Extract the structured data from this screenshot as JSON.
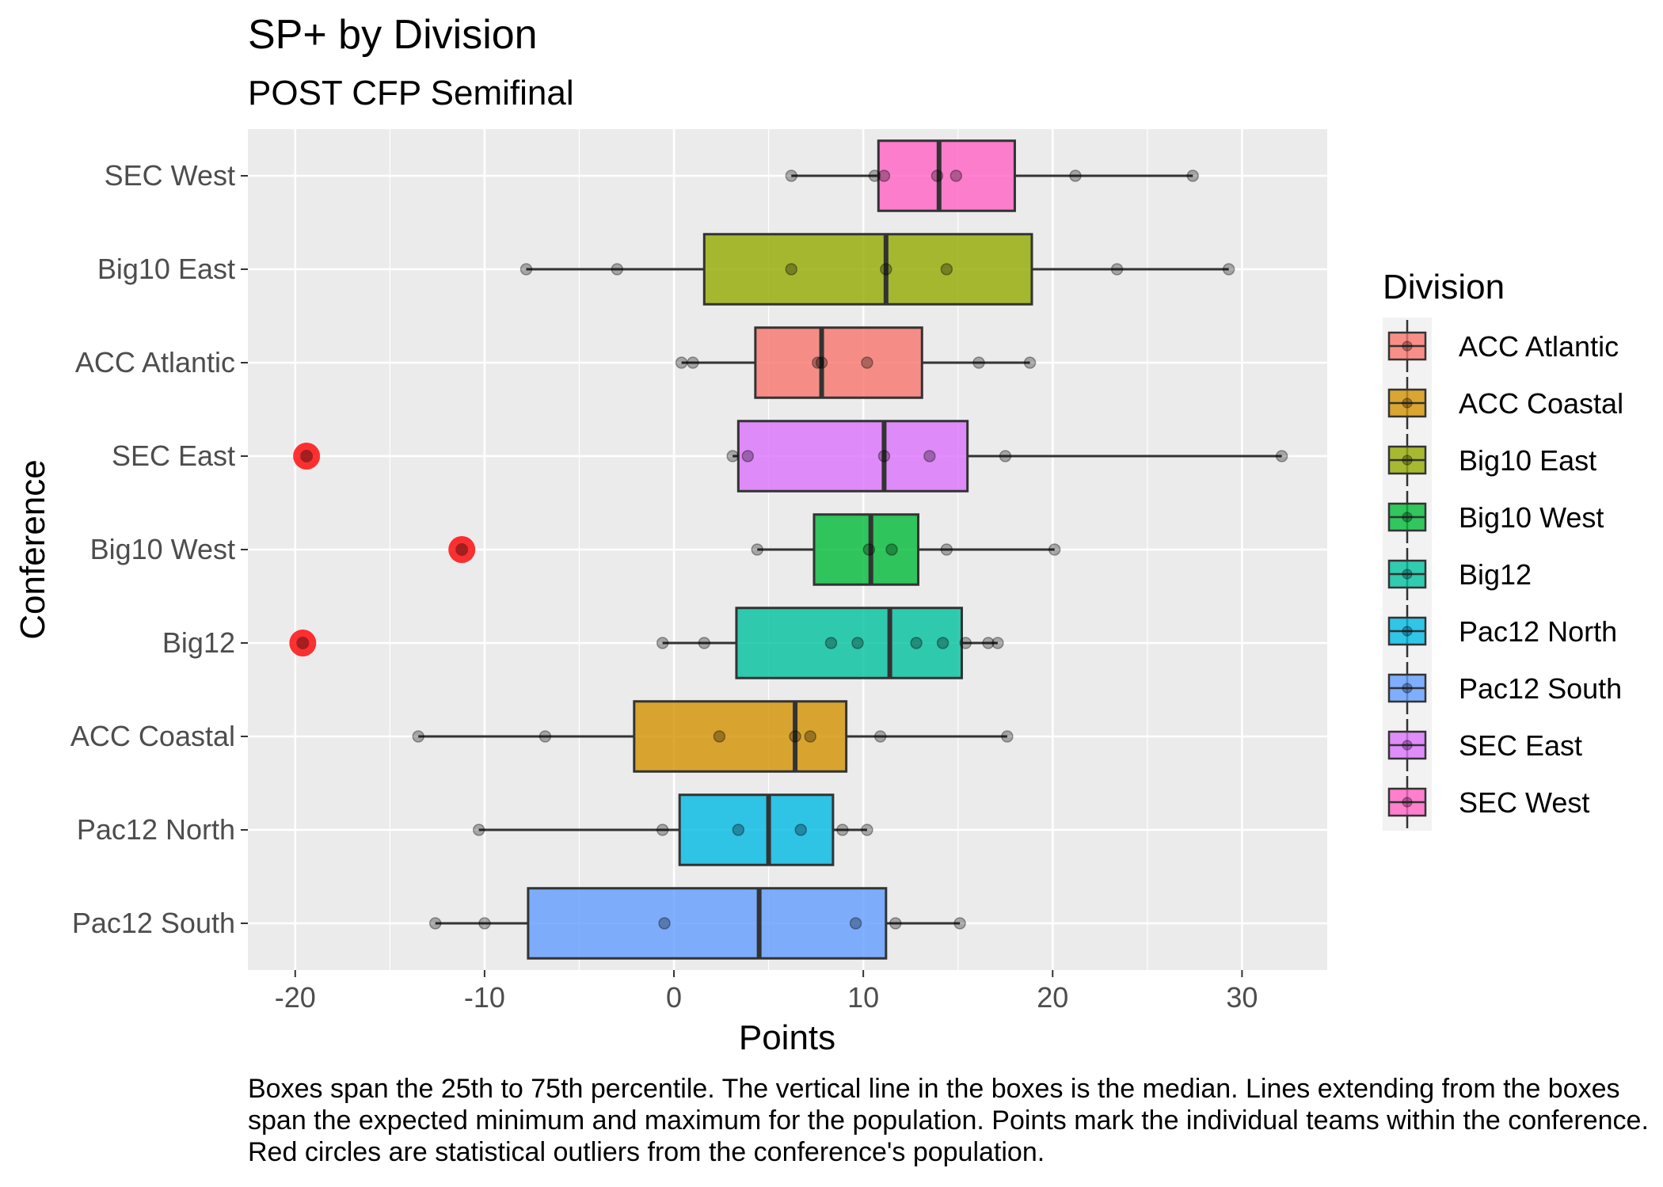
{
  "chart_data": {
    "type": "boxplot",
    "title": "SP+ by Division",
    "subtitle": "POST CFP Semifinal",
    "xlabel": "Points",
    "ylabel": "Conference",
    "xlim": [
      -22.5,
      34.5
    ],
    "x_ticks": [
      -20,
      -10,
      0,
      10,
      20,
      30
    ],
    "x_tick_labels": [
      "-20",
      "-10",
      "0",
      "10",
      "20",
      "30"
    ],
    "grid": true,
    "legend_position": "right",
    "legend_title": "Division",
    "caption": "Boxes span the 25th to 75th percentile. The vertical line in the boxes is the median. Lines extending from the boxes span the expected minimum and maximum for the population. Points mark the individual teams within the conference. Red circles are statistical outliers from the conference's population.",
    "categories": [
      "Pac12 South",
      "Pac12 North",
      "ACC Coastal",
      "Big12",
      "Big10 West",
      "SEC East",
      "ACC Atlantic",
      "Big10 East",
      "SEC West"
    ],
    "legend_order": [
      "ACC Atlantic",
      "ACC Coastal",
      "Big10 East",
      "Big10 West",
      "Big12",
      "Pac12 North",
      "Pac12 South",
      "SEC East",
      "SEC West"
    ],
    "series": [
      {
        "name": "Pac12 South",
        "color": "#619CFF",
        "whisker_min": -12.6,
        "q1": -7.7,
        "median": 4.5,
        "q3": 11.2,
        "whisker_max": 15.1,
        "points": [
          -12.6,
          -10.0,
          -0.5,
          9.6,
          11.7,
          15.1
        ],
        "outliers": []
      },
      {
        "name": "Pac12 North",
        "color": "#00B9E3",
        "whisker_min": -10.3,
        "q1": 0.3,
        "median": 5.0,
        "q3": 8.4,
        "whisker_max": 10.2,
        "points": [
          -10.3,
          -0.6,
          3.4,
          6.7,
          8.9,
          10.2
        ],
        "outliers": []
      },
      {
        "name": "ACC Coastal",
        "color": "#D39200",
        "whisker_min": -13.5,
        "q1": -2.1,
        "median": 6.4,
        "q3": 9.1,
        "whisker_max": 17.6,
        "points": [
          -13.5,
          -6.8,
          2.4,
          6.4,
          7.2,
          10.9,
          17.6
        ],
        "outliers": []
      },
      {
        "name": "Big12",
        "color": "#00C19F",
        "whisker_min": -0.6,
        "q1": 3.3,
        "median": 11.4,
        "q3": 15.2,
        "whisker_max": 17.1,
        "points": [
          -0.6,
          1.6,
          8.3,
          9.7,
          12.8,
          14.2,
          15.4,
          16.6,
          17.1
        ],
        "outliers": [
          -19.6
        ]
      },
      {
        "name": "Big10 West",
        "color": "#00BA38",
        "whisker_min": 4.4,
        "q1": 7.4,
        "median": 10.4,
        "q3": 12.9,
        "whisker_max": 20.1,
        "points": [
          4.4,
          10.3,
          11.5,
          14.4,
          20.1
        ],
        "outliers": [
          -11.2
        ]
      },
      {
        "name": "SEC East",
        "color": "#DB72FB",
        "whisker_min": 3.1,
        "q1": 3.4,
        "median": 11.1,
        "q3": 15.5,
        "whisker_max": 32.1,
        "points": [
          3.1,
          3.9,
          11.1,
          13.5,
          17.5,
          32.1
        ],
        "outliers": [
          -19.4
        ]
      },
      {
        "name": "ACC Atlantic",
        "color": "#F8766D",
        "whisker_min": 0.4,
        "q1": 4.3,
        "median": 7.8,
        "q3": 13.1,
        "whisker_max": 18.8,
        "points": [
          0.4,
          1.0,
          7.6,
          7.8,
          10.2,
          16.1,
          18.8
        ],
        "outliers": []
      },
      {
        "name": "Big10 East",
        "color": "#93AA00",
        "whisker_min": -7.8,
        "q1": 1.6,
        "median": 11.2,
        "q3": 18.9,
        "whisker_max": 29.3,
        "points": [
          -7.8,
          -3.0,
          6.2,
          11.2,
          14.4,
          23.4,
          29.3
        ],
        "outliers": []
      },
      {
        "name": "SEC West",
        "color": "#FF61C3",
        "whisker_min": 6.2,
        "q1": 10.8,
        "median": 14.0,
        "q3": 18.0,
        "whisker_max": 27.4,
        "points": [
          6.2,
          10.6,
          11.1,
          13.9,
          14.9,
          21.2,
          27.4
        ],
        "outliers": []
      }
    ]
  }
}
